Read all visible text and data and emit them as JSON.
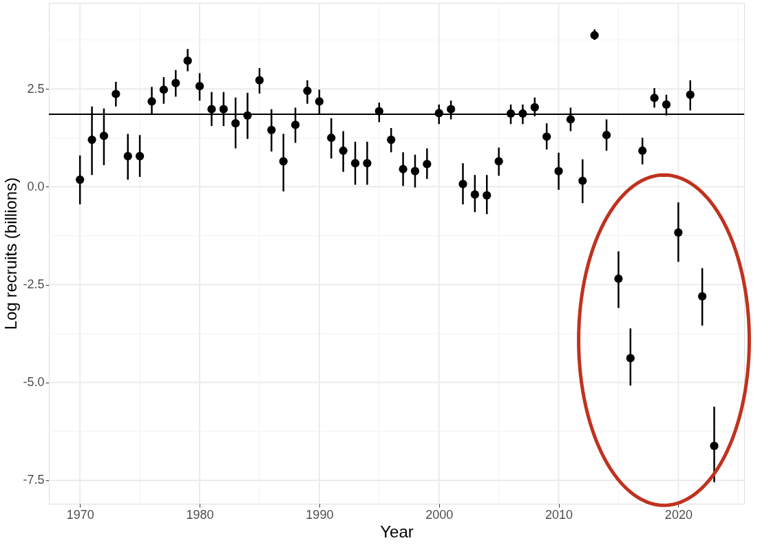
{
  "chart_data": {
    "type": "scatter",
    "xlabel": "Year",
    "ylabel": "Log recruits (billions)",
    "x": [
      1970,
      1971,
      1972,
      1973,
      1974,
      1975,
      1976,
      1977,
      1978,
      1979,
      1980,
      1981,
      1982,
      1983,
      1984,
      1985,
      1986,
      1987,
      1988,
      1989,
      1990,
      1991,
      1992,
      1993,
      1994,
      1995,
      1996,
      1997,
      1998,
      1999,
      2000,
      2001,
      2002,
      2003,
      2004,
      2005,
      2006,
      2007,
      2008,
      2009,
      2010,
      2011,
      2012,
      2013,
      2014,
      2015,
      2016,
      2017,
      2018,
      2019,
      2020,
      2021,
      2022,
      2023
    ],
    "series": [
      {
        "color": "#000000",
        "values": [
          0.18,
          1.2,
          1.3,
          2.37,
          0.78,
          0.78,
          2.18,
          2.48,
          2.65,
          3.22,
          2.57,
          1.98,
          1.98,
          1.62,
          1.82,
          2.72,
          1.45,
          0.65,
          1.58,
          2.45,
          2.18,
          1.25,
          0.92,
          0.6,
          0.6,
          1.93,
          1.2,
          0.45,
          0.4,
          0.58,
          1.88,
          1.98,
          0.07,
          -0.2,
          -0.22,
          0.65,
          1.87,
          1.87,
          2.03,
          1.28,
          0.4,
          1.72,
          0.15,
          3.87,
          1.32,
          -2.35,
          -4.38,
          0.92,
          2.27,
          2.1,
          -1.17,
          2.35,
          -2.8,
          -6.62
        ],
        "errors": [
          [
            -0.45,
            0.8
          ],
          [
            0.3,
            2.05
          ],
          [
            0.55,
            2.0
          ],
          [
            2.05,
            2.68
          ],
          [
            0.18,
            1.35
          ],
          [
            0.25,
            1.32
          ],
          [
            1.85,
            2.55
          ],
          [
            2.12,
            2.8
          ],
          [
            2.3,
            2.98
          ],
          [
            2.95,
            3.52
          ],
          [
            2.2,
            2.9
          ],
          [
            1.55,
            2.42
          ],
          [
            1.55,
            2.42
          ],
          [
            0.98,
            2.28
          ],
          [
            1.22,
            2.4
          ],
          [
            2.38,
            3.03
          ],
          [
            0.9,
            1.98
          ],
          [
            -0.12,
            1.35
          ],
          [
            1.12,
            2.02
          ],
          [
            2.12,
            2.72
          ],
          [
            1.85,
            2.48
          ],
          [
            0.72,
            1.75
          ],
          [
            0.38,
            1.42
          ],
          [
            0.05,
            1.15
          ],
          [
            0.05,
            1.15
          ],
          [
            1.65,
            2.15
          ],
          [
            0.88,
            1.5
          ],
          [
            0.02,
            0.88
          ],
          [
            -0.02,
            0.82
          ],
          [
            0.2,
            0.98
          ],
          [
            1.6,
            2.1
          ],
          [
            1.72,
            2.2
          ],
          [
            -0.45,
            0.6
          ],
          [
            -0.65,
            0.3
          ],
          [
            -0.7,
            0.3
          ],
          [
            0.28,
            1.0
          ],
          [
            1.6,
            2.1
          ],
          [
            1.6,
            2.1
          ],
          [
            1.8,
            2.28
          ],
          [
            0.95,
            1.62
          ],
          [
            -0.08,
            0.87
          ],
          [
            1.42,
            2.02
          ],
          [
            -0.42,
            0.7
          ],
          [
            3.75,
            4.02
          ],
          [
            0.92,
            1.72
          ],
          [
            -3.1,
            -1.65
          ],
          [
            -5.08,
            -3.62
          ],
          [
            0.57,
            1.25
          ],
          [
            2.02,
            2.52
          ],
          [
            1.82,
            2.35
          ],
          [
            -1.92,
            -0.4
          ],
          [
            1.95,
            2.72
          ],
          [
            -3.55,
            -2.08
          ],
          [
            -7.55,
            -5.62
          ]
        ]
      }
    ],
    "xlim": [
      1967.4,
      2025.5
    ],
    "xticks": [
      1970,
      1980,
      1990,
      2000,
      2010,
      2020
    ],
    "ylim": [
      -8.1,
      4.7
    ],
    "yticks": [
      {
        "value": -7.5,
        "label": "-7.5"
      },
      {
        "value": -5,
        "label": "-5.0"
      },
      {
        "value": -2.5,
        "label": "-2.5"
      },
      {
        "value": 0,
        "label": "0.0"
      },
      {
        "value": 2.5,
        "label": "2.5"
      }
    ],
    "ref_lines": [
      {
        "axis": "y",
        "value": 1.85,
        "color": "#000000"
      }
    ],
    "grid": true,
    "marker": "circle"
  }
}
